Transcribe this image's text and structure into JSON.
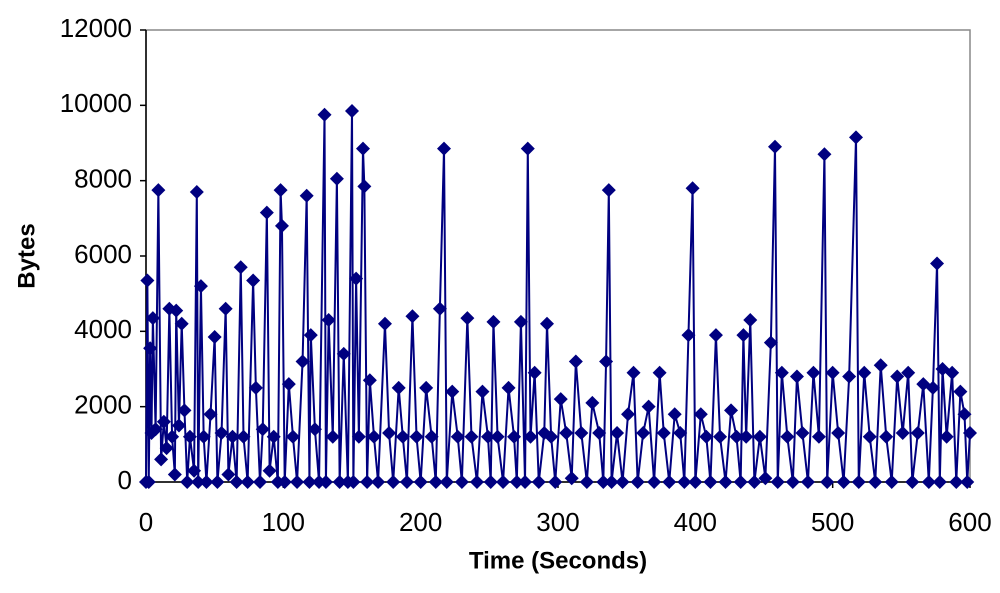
{
  "chart_data": {
    "type": "line",
    "x_label": "Time (Seconds)",
    "y_label": "Bytes",
    "color": "#000080",
    "marker": "diamond",
    "xlim": [
      0,
      600
    ],
    "xticks": [
      0,
      100,
      200,
      300,
      400,
      500,
      600
    ],
    "ylim": [
      0,
      12000
    ],
    "yticks": [
      0,
      2000,
      4000,
      6000,
      8000,
      10000,
      12000
    ],
    "x": [
      0,
      1,
      2,
      3,
      4,
      5,
      7,
      9,
      11,
      13,
      15,
      17,
      19,
      21,
      22,
      24,
      26,
      28,
      30,
      32,
      35,
      37,
      38,
      40,
      42,
      44,
      47,
      50,
      52,
      55,
      58,
      60,
      63,
      66,
      69,
      71,
      74,
      78,
      80,
      83,
      85,
      88,
      90,
      93,
      96,
      98,
      99,
      101,
      104,
      107,
      110,
      114,
      117,
      119,
      120,
      123,
      126,
      130,
      131,
      133,
      136,
      139,
      141,
      144,
      147,
      150,
      151,
      153,
      155,
      158,
      159,
      161,
      163,
      166,
      169,
      174,
      177,
      180,
      184,
      187,
      190,
      194,
      197,
      200,
      204,
      208,
      211,
      214,
      217,
      219,
      223,
      227,
      230,
      234,
      237,
      241,
      245,
      249,
      251,
      253,
      256,
      260,
      264,
      268,
      270,
      273,
      276,
      278,
      280,
      283,
      286,
      290,
      292,
      295,
      298,
      302,
      306,
      310,
      313,
      317,
      321,
      325,
      330,
      333,
      335,
      337,
      339,
      343,
      347,
      351,
      355,
      358,
      362,
      366,
      370,
      374,
      377,
      381,
      385,
      389,
      392,
      395,
      398,
      400,
      404,
      408,
      411,
      415,
      418,
      422,
      426,
      430,
      433,
      435,
      437,
      440,
      443,
      447,
      451,
      455,
      458,
      460,
      463,
      467,
      471,
      474,
      478,
      482,
      486,
      490,
      494,
      496,
      500,
      504,
      508,
      512,
      517,
      519,
      523,
      527,
      531,
      535,
      539,
      543,
      547,
      551,
      555,
      558,
      562,
      566,
      570,
      573,
      576,
      578,
      580,
      583,
      587,
      590,
      593,
      596,
      598,
      600
    ],
    "values": [
      0,
      5350,
      0,
      3550,
      1300,
      4350,
      1400,
      7750,
      600,
      1600,
      900,
      4600,
      1200,
      200,
      4550,
      1500,
      4200,
      1900,
      0,
      1200,
      300,
      7700,
      0,
      5200,
      1200,
      0,
      1800,
      3850,
      0,
      1300,
      4600,
      200,
      1200,
      0,
      5700,
      1200,
      0,
      5350,
      2500,
      0,
      1400,
      7150,
      300,
      1200,
      0,
      7750,
      6800,
      0,
      2600,
      1200,
      0,
      3200,
      7600,
      0,
      3900,
      1400,
      0,
      9750,
      0,
      4300,
      1200,
      8050,
      0,
      3400,
      0,
      9850,
      0,
      5400,
      1200,
      8850,
      7850,
      0,
      2700,
      1200,
      0,
      4200,
      1300,
      0,
      2500,
      1200,
      0,
      4400,
      1200,
      0,
      2500,
      1200,
      0,
      4600,
      8850,
      0,
      2400,
      1200,
      0,
      4350,
      1200,
      0,
      2400,
      1200,
      0,
      4250,
      1200,
      0,
      2500,
      1200,
      0,
      4250,
      0,
      8850,
      1200,
      2900,
      0,
      1300,
      4200,
      1200,
      0,
      2200,
      1300,
      100,
      3200,
      1300,
      0,
      2100,
      1300,
      0,
      3200,
      7750,
      0,
      1300,
      0,
      1800,
      2900,
      0,
      1300,
      2000,
      0,
      2900,
      1300,
      0,
      1800,
      1300,
      0,
      3900,
      7800,
      0,
      1800,
      1200,
      0,
      3900,
      1200,
      0,
      1900,
      1200,
      0,
      3900,
      1200,
      4300,
      0,
      1200,
      100,
      3700,
      8900,
      0,
      2900,
      1200,
      0,
      2800,
      1300,
      0,
      2900,
      1200,
      8700,
      0,
      2900,
      1300,
      0,
      2800,
      9150,
      0,
      2900,
      1200,
      0,
      3100,
      1200,
      0,
      2800,
      1300,
      2900,
      0,
      1300,
      2600,
      0,
      2500,
      5800,
      0,
      3000,
      1200,
      2900,
      0,
      2400,
      1800,
      0,
      1300
    ]
  }
}
